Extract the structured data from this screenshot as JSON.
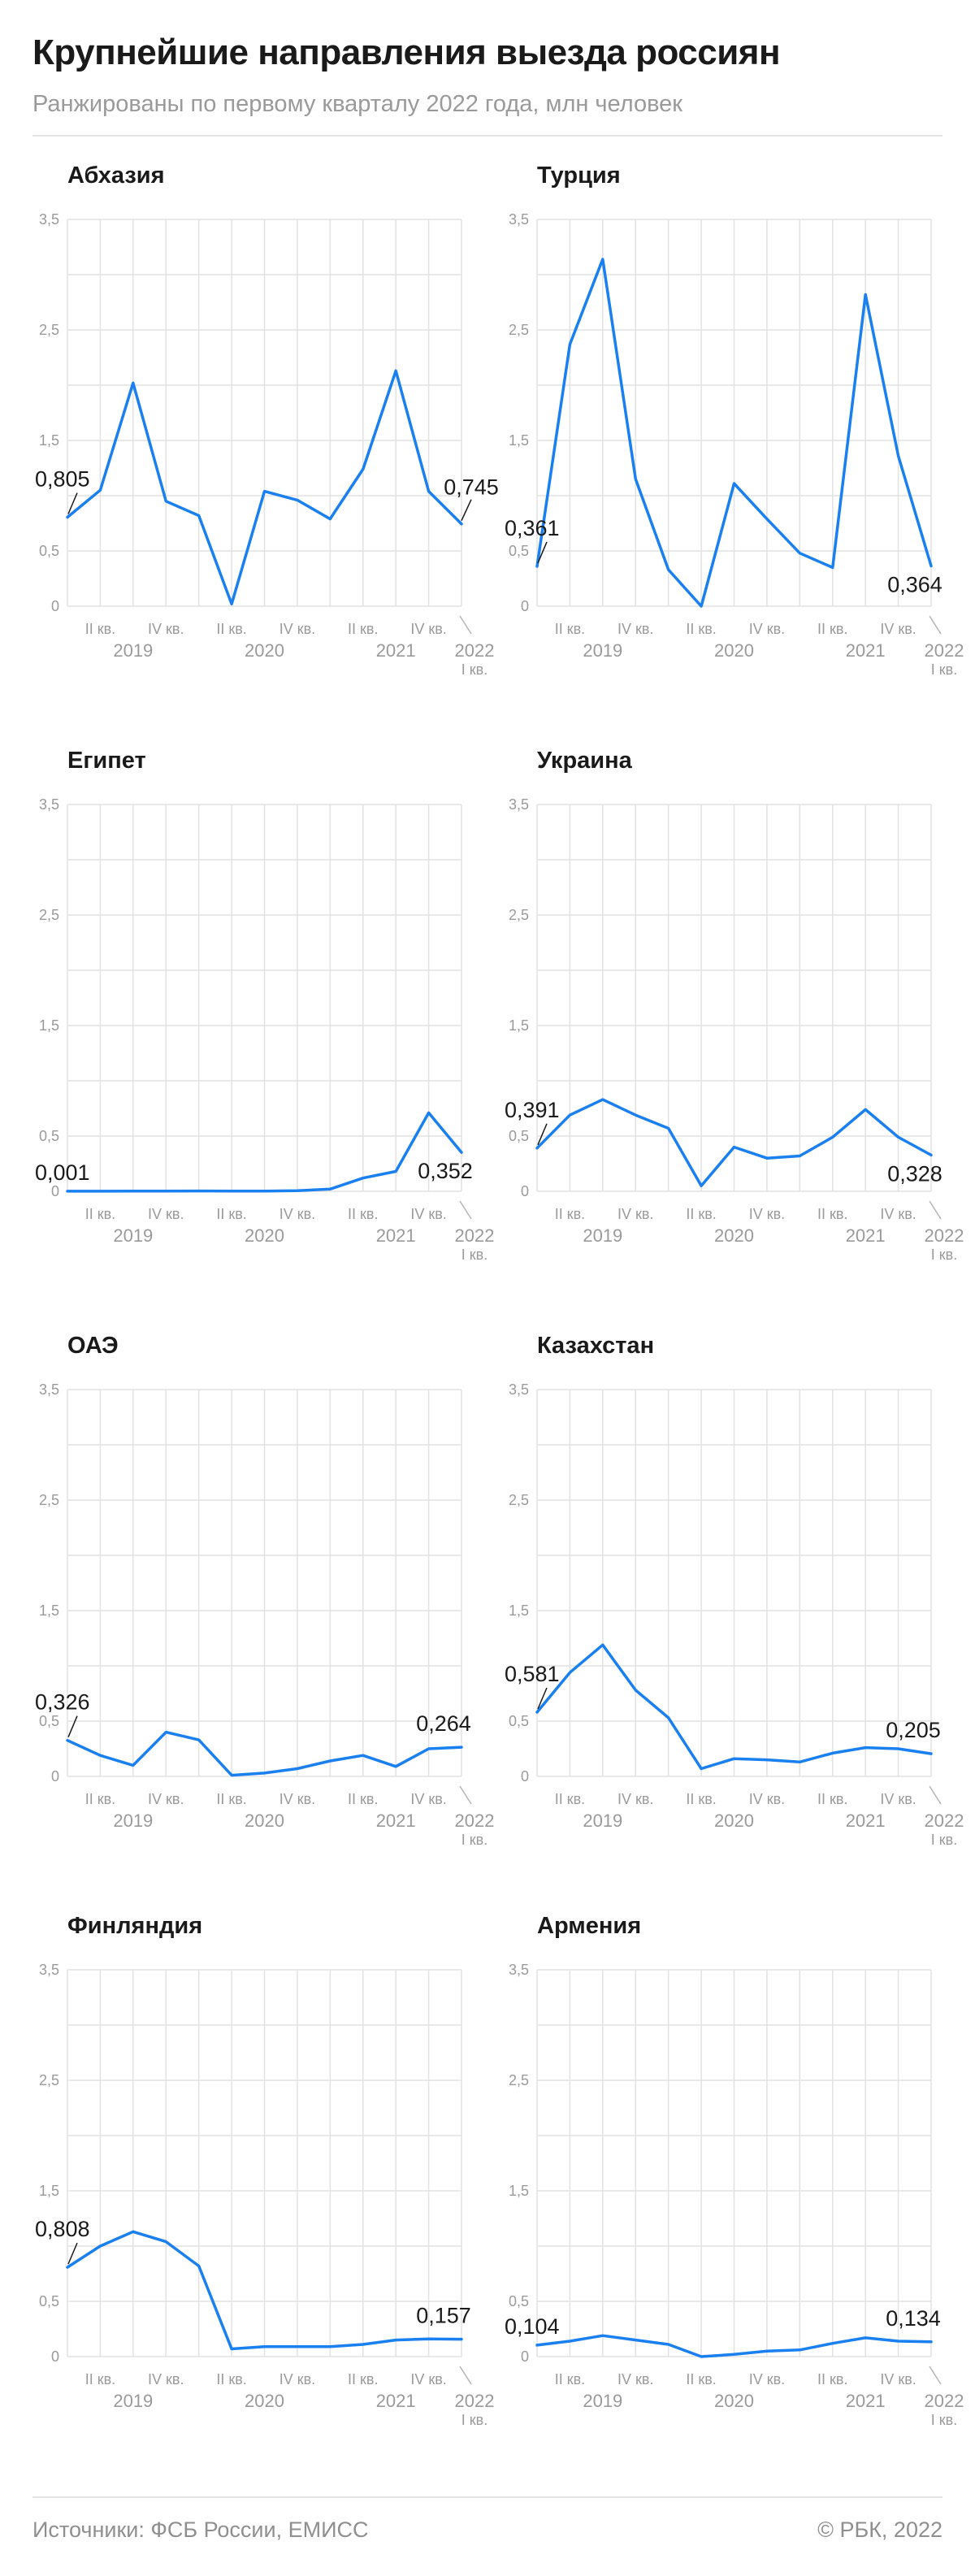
{
  "header": {
    "title": "Крупнейшие направления выезда россиян",
    "subtitle": "Ранжированы по первому кварталу 2022 года, млн человек"
  },
  "footer": {
    "sources": "Источники: ФСБ России, ЕМИСС",
    "copyright": "© РБК, 2022"
  },
  "colors": {
    "line": "#1a80f0",
    "grid": "#e2e2e2",
    "axis_text": "#9a9a9a"
  },
  "axis": {
    "y_ticks": [
      "0",
      "0,5",
      "1,5",
      "2,5",
      "3,5"
    ],
    "quarter_labels": [
      "II кв.",
      "IV кв.",
      "II кв.",
      "IV кв.",
      "II кв.",
      "IV кв."
    ],
    "year_labels": [
      "2019",
      "2020",
      "2021",
      "2022"
    ],
    "last_quarter_label": "I кв."
  },
  "chart_data": [
    {
      "type": "line",
      "title": "Абхазия",
      "ylim": [
        0,
        3.5
      ],
      "x": [
        "I кв. 2019",
        "II кв. 2019",
        "III кв. 2019",
        "IV кв. 2019",
        "I кв. 2020",
        "II кв. 2020",
        "III кв. 2020",
        "IV кв. 2020",
        "I кв. 2021",
        "II кв. 2021",
        "III кв. 2021",
        "IV кв. 2021",
        "I кв. 2022"
      ],
      "values": [
        0.805,
        1.05,
        2.02,
        0.95,
        0.82,
        0.02,
        1.04,
        0.96,
        0.79,
        1.24,
        2.13,
        1.04,
        0.745
      ],
      "start_label": "0,805",
      "end_label": "0,745"
    },
    {
      "type": "line",
      "title": "Турция",
      "ylim": [
        0,
        3.5
      ],
      "x": [
        "I кв. 2019",
        "II кв. 2019",
        "III кв. 2019",
        "IV кв. 2019",
        "I кв. 2020",
        "II кв. 2020",
        "III кв. 2020",
        "IV кв. 2020",
        "I кв. 2021",
        "II кв. 2021",
        "III кв. 2021",
        "IV кв. 2021",
        "I кв. 2022"
      ],
      "values": [
        0.361,
        2.37,
        3.14,
        1.15,
        0.33,
        0.0,
        1.11,
        0.79,
        0.48,
        0.35,
        2.82,
        1.36,
        0.364
      ],
      "start_label": "0,361",
      "end_label": "0,364"
    },
    {
      "type": "line",
      "title": "Египет",
      "ylim": [
        0,
        3.5
      ],
      "x": [
        "I кв. 2019",
        "II кв. 2019",
        "III кв. 2019",
        "IV кв. 2019",
        "I кв. 2020",
        "II кв. 2020",
        "III кв. 2020",
        "IV кв. 2020",
        "I кв. 2021",
        "II кв. 2021",
        "III кв. 2021",
        "IV кв. 2021",
        "I кв. 2022"
      ],
      "values": [
        0.001,
        0.001,
        0.002,
        0.002,
        0.003,
        0.002,
        0.002,
        0.005,
        0.02,
        0.12,
        0.18,
        0.71,
        0.352
      ],
      "start_label": "0,001",
      "end_label": "0,352"
    },
    {
      "type": "line",
      "title": "Украина",
      "ylim": [
        0,
        3.5
      ],
      "x": [
        "I кв. 2019",
        "II кв. 2019",
        "III кв. 2019",
        "IV кв. 2019",
        "I кв. 2020",
        "II кв. 2020",
        "III кв. 2020",
        "IV кв. 2020",
        "I кв. 2021",
        "II кв. 2021",
        "III кв. 2021",
        "IV кв. 2021",
        "I кв. 2022"
      ],
      "values": [
        0.391,
        0.69,
        0.83,
        0.69,
        0.57,
        0.05,
        0.4,
        0.3,
        0.32,
        0.49,
        0.74,
        0.49,
        0.328
      ],
      "start_label": "0,391",
      "end_label": "0,328"
    },
    {
      "type": "line",
      "title": "ОАЭ",
      "ylim": [
        0,
        3.5
      ],
      "x": [
        "I кв. 2019",
        "II кв. 2019",
        "III кв. 2019",
        "IV кв. 2019",
        "I кв. 2020",
        "II кв. 2020",
        "III кв. 2020",
        "IV кв. 2020",
        "I кв. 2021",
        "II кв. 2021",
        "III кв. 2021",
        "IV кв. 2021",
        "I кв. 2022"
      ],
      "values": [
        0.326,
        0.19,
        0.1,
        0.4,
        0.33,
        0.01,
        0.03,
        0.07,
        0.14,
        0.19,
        0.09,
        0.25,
        0.264
      ],
      "start_label": "0,326",
      "end_label": "0,264"
    },
    {
      "type": "line",
      "title": "Казахстан",
      "ylim": [
        0,
        3.5
      ],
      "x": [
        "I кв. 2019",
        "II кв. 2019",
        "III кв. 2019",
        "IV кв. 2019",
        "I кв. 2020",
        "II кв. 2020",
        "III кв. 2020",
        "IV кв. 2020",
        "I кв. 2021",
        "II кв. 2021",
        "III кв. 2021",
        "IV кв. 2021",
        "I кв. 2022"
      ],
      "values": [
        0.581,
        0.94,
        1.19,
        0.78,
        0.53,
        0.07,
        0.16,
        0.15,
        0.13,
        0.21,
        0.26,
        0.25,
        0.205
      ],
      "start_label": "0,581",
      "end_label": "0,205"
    },
    {
      "type": "line",
      "title": "Финляндия",
      "ylim": [
        0,
        3.5
      ],
      "x": [
        "I кв. 2019",
        "II кв. 2019",
        "III кв. 2019",
        "IV кв. 2019",
        "I кв. 2020",
        "II кв. 2020",
        "III кв. 2020",
        "IV кв. 2020",
        "I кв. 2021",
        "II кв. 2021",
        "III кв. 2021",
        "IV кв. 2021",
        "I кв. 2022"
      ],
      "values": [
        0.808,
        1.0,
        1.13,
        1.04,
        0.82,
        0.07,
        0.09,
        0.09,
        0.09,
        0.11,
        0.15,
        0.16,
        0.157
      ],
      "start_label": "0,808",
      "end_label": "0,157"
    },
    {
      "type": "line",
      "title": "Армения",
      "ylim": [
        0,
        3.5
      ],
      "x": [
        "I кв. 2019",
        "II кв. 2019",
        "III кв. 2019",
        "IV кв. 2019",
        "I кв. 2020",
        "II кв. 2020",
        "III кв. 2020",
        "IV кв. 2020",
        "I кв. 2021",
        "II кв. 2021",
        "III кв. 2021",
        "IV кв. 2021",
        "I кв. 2022"
      ],
      "values": [
        0.104,
        0.14,
        0.19,
        0.15,
        0.11,
        0.0,
        0.02,
        0.05,
        0.06,
        0.12,
        0.17,
        0.14,
        0.134
      ],
      "start_label": "0,104",
      "end_label": "0,134"
    }
  ]
}
